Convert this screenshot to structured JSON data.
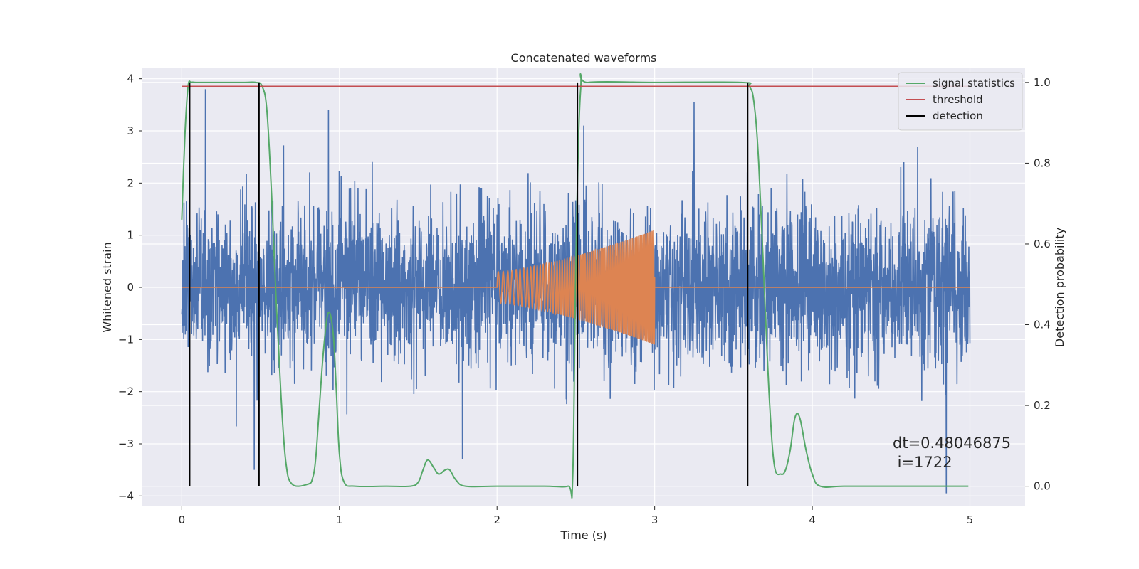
{
  "chart_data": {
    "type": "line",
    "title": "Concatenated waveforms",
    "xlabel": "Time (s)",
    "ylabel": "Whitened strain",
    "ylabel_right": "Detection probability",
    "xlim": [
      -0.25,
      5.35
    ],
    "ylim": [
      -4.2,
      4.2
    ],
    "ylim_right": [
      -0.05,
      1.035
    ],
    "xticks": [
      0,
      1,
      2,
      3,
      4,
      5
    ],
    "yticks": [
      -4,
      -3,
      -2,
      -1,
      0,
      1,
      2,
      3,
      4
    ],
    "yticks_right": [
      0.0,
      0.2,
      0.4,
      0.6,
      0.8,
      1.0
    ],
    "xtick_labels": [
      "0",
      "1",
      "2",
      "3",
      "4",
      "5"
    ],
    "ytick_labels": [
      "−4",
      "−3",
      "−2",
      "−1",
      "0",
      "1",
      "2",
      "3",
      "4"
    ],
    "ytick_labels_right": [
      "0.0",
      "0.2",
      "0.4",
      "0.6",
      "0.8",
      "1.0"
    ],
    "grid": true,
    "legend_position": "top-right",
    "background": "#eaeaf2",
    "series": [
      {
        "name": "",
        "axis": "left",
        "color": "#4c72b0",
        "kind": "noise",
        "x_range": [
          0,
          5
        ],
        "std": 0.75,
        "peaks": [
          [
            0.15,
            3.8
          ],
          [
            0.93,
            3.4
          ],
          [
            2.55,
            3.1
          ],
          [
            3.25,
            3.55
          ],
          [
            4.58,
            2.4
          ],
          [
            0.46,
            -3.5
          ],
          [
            1.78,
            -3.3
          ],
          [
            4.85,
            -3.95
          ]
        ]
      },
      {
        "name": "",
        "axis": "left",
        "color": "#dd8452",
        "kind": "chirp",
        "x_range": [
          0,
          5
        ],
        "active": [
          2.0,
          3.0
        ],
        "amplitude_start": 0.3,
        "amplitude_end": 1.1,
        "freq_start": 30,
        "freq_end": 110
      },
      {
        "name": "signal statistics",
        "axis": "right",
        "color": "#55a868",
        "x": [
          0,
          0.02,
          0.04,
          0.06,
          0.09,
          0.2,
          0.4,
          0.47,
          0.51,
          0.54,
          0.57,
          0.6,
          0.63,
          0.66,
          0.7,
          0.8,
          0.83,
          0.85,
          0.87,
          0.9,
          0.93,
          0.96,
          0.98,
          1.0,
          1.03,
          1.1,
          1.3,
          1.45,
          1.5,
          1.53,
          1.56,
          1.6,
          1.63,
          1.67,
          1.7,
          1.74,
          1.8,
          2.0,
          2.3,
          2.45,
          2.48,
          2.5,
          2.53,
          2.58,
          3.0,
          3.55,
          3.6,
          3.63,
          3.66,
          3.7,
          3.73,
          3.76,
          3.8,
          3.83,
          3.86,
          3.89,
          3.92,
          3.96,
          4.0,
          4.05,
          4.2,
          4.5,
          4.8,
          4.99
        ],
        "values": [
          0.66,
          0.87,
          0.99,
          1.0,
          1.0,
          1.0,
          1.0,
          1.0,
          0.99,
          0.93,
          0.72,
          0.45,
          0.22,
          0.06,
          0.005,
          0.005,
          0.02,
          0.07,
          0.18,
          0.34,
          0.43,
          0.38,
          0.24,
          0.08,
          0.01,
          0.0,
          0.0,
          0.0,
          0.01,
          0.04,
          0.065,
          0.045,
          0.03,
          0.04,
          0.04,
          0.015,
          0.0,
          0.0,
          0.0,
          0.0,
          0.02,
          0.55,
          0.98,
          1.0,
          1.0,
          1.0,
          0.99,
          0.95,
          0.8,
          0.45,
          0.2,
          0.05,
          0.03,
          0.04,
          0.09,
          0.17,
          0.17,
          0.09,
          0.03,
          0.0,
          0.0,
          0.0,
          0.0,
          0.0
        ]
      },
      {
        "name": "threshold",
        "axis": "right",
        "color": "#c44e52",
        "x": [
          0,
          5
        ],
        "values": [
          0.99,
          0.99
        ]
      },
      {
        "name": "detection",
        "axis": "right",
        "color": "#000000",
        "kind": "vlines",
        "x": [
          0.05,
          0.49,
          2.51,
          3.59
        ],
        "ymin": 0.0,
        "ymax": 1.0
      }
    ],
    "annotation": {
      "line1": "dt=0.48046875",
      "line2": " i=1722",
      "x": 4.5,
      "y": -3.0
    }
  }
}
